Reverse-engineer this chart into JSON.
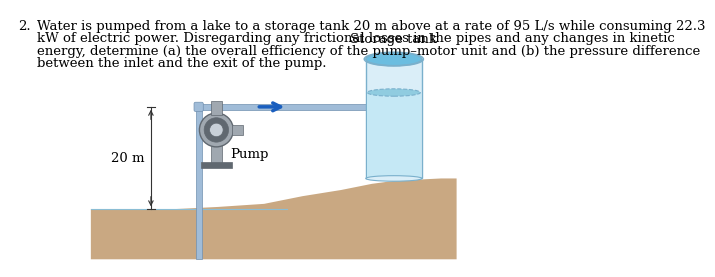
{
  "problem_number": "2.",
  "problem_text_line1": "Water is pumped from a lake to a storage tank 20 m above at a rate of 95 L/s while consuming 22.3",
  "problem_text_line2": "kW of electric power. Disregarding any frictional losses in the pipes and any changes in kinetic",
  "problem_text_line3": "energy, determine (a) the overall efficiency of the pump–motor unit and (b) the pressure difference",
  "problem_text_line4": "between the inlet and the exit of the pump.",
  "storage_tank_label": "Storage tank",
  "pump_label": "Pump",
  "height_label": "20 m",
  "bg_color": "#ffffff",
  "text_color": "#000000",
  "water_lake_color": "#b8dff0",
  "water_lake_dark": "#8bbdd4",
  "tank_body_color": "#daeef8",
  "tank_outline": "#7ab0cc",
  "tank_top_color": "#6bbde0",
  "tank_water_color": "#c5e8f5",
  "tank_water_surface": "#90cce0",
  "ground_color": "#c9a882",
  "pipe_color": "#a0bcd8",
  "pipe_edge": "#7090b0",
  "arrow_color": "#1a5fbf",
  "pump_silver": "#a0a8b0",
  "pump_dark": "#606870",
  "pump_light": "#c8d0d8",
  "dim_line_color": "#333333"
}
